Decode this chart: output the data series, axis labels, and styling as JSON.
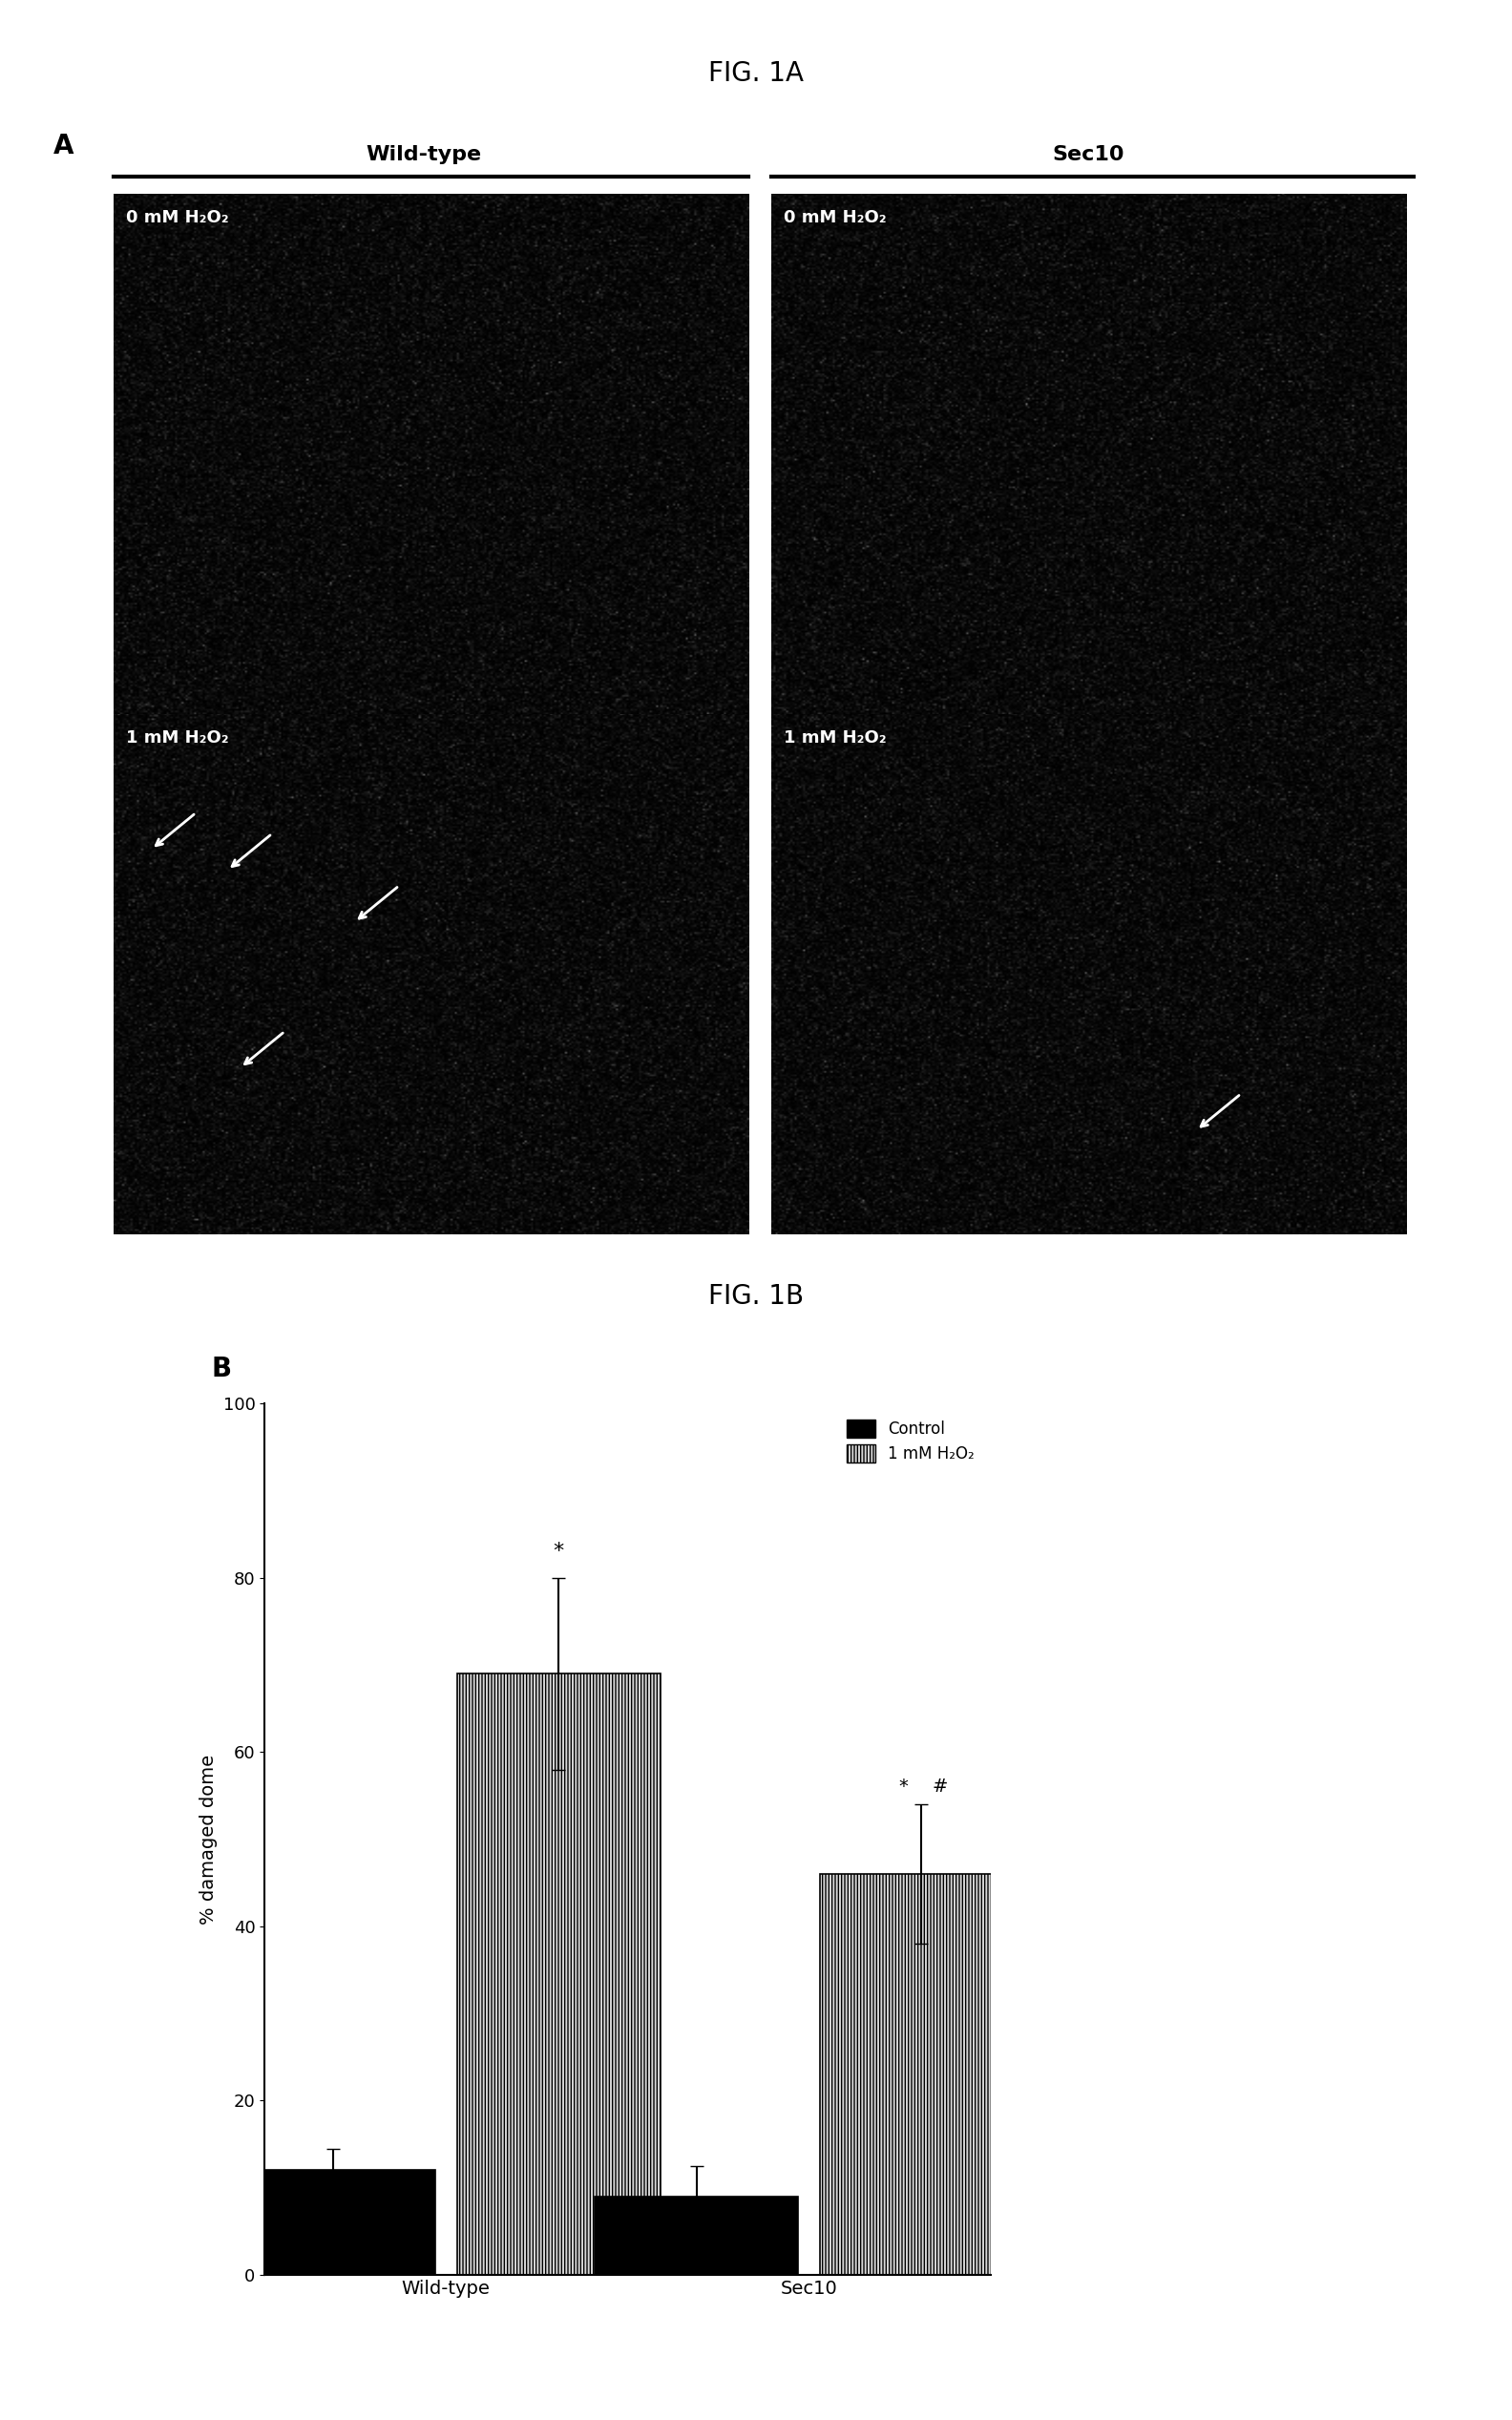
{
  "fig1a_title": "FIG. 1A",
  "fig1b_title": "FIG. 1B",
  "panel_a_label": "A",
  "panel_b_label": "B",
  "col_labels": [
    "Wild-type",
    "Sec10"
  ],
  "row_labels_0": [
    "0 mM H₂O₂",
    "0 mM H₂O₂"
  ],
  "row_labels_1": [
    "1 mM H₂O₂",
    "1 mM H₂O₂"
  ],
  "bar_groups": [
    "Wild-type",
    "Sec10"
  ],
  "control_values": [
    12,
    9
  ],
  "h2o2_values": [
    69,
    46
  ],
  "control_errors": [
    2.5,
    3.5
  ],
  "h2o2_errors": [
    11,
    8
  ],
  "control_color": "#000000",
  "h2o2_facecolor": "#d8d8d8",
  "h2o2_edgecolor": "#000000",
  "ylabel": "% damaged dome",
  "ylim": [
    0,
    100
  ],
  "yticks": [
    0,
    20,
    40,
    60,
    80,
    100
  ],
  "legend_control": "Control",
  "legend_h2o2": "1 mM H₂O₂",
  "bar_width": 0.28,
  "group_centers": [
    0.25,
    0.75
  ],
  "xlim": [
    0.0,
    1.0
  ],
  "background_color": "#ffffff",
  "font_family": "DejaVu Sans"
}
